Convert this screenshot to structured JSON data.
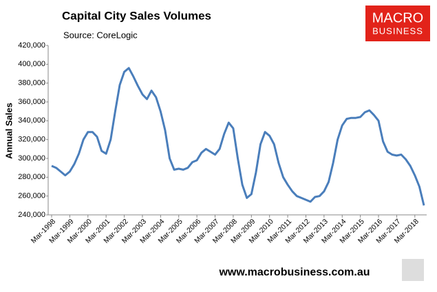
{
  "logo": {
    "line1": "MACRO",
    "line2": "BUSINESS"
  },
  "footer": "www.macrobusiness.com.au",
  "chart_data": {
    "type": "line",
    "title": "Capital City Sales Volumes",
    "subtitle": "Source: CoreLogic",
    "y_label": "Annual Sales",
    "categories": [
      "Mar-1998",
      null,
      null,
      null,
      "Mar-1999",
      null,
      null,
      null,
      "Mar-2000",
      null,
      null,
      null,
      "Mar-2001",
      null,
      null,
      null,
      "Mar-2002",
      null,
      null,
      null,
      "Mar-2003",
      null,
      null,
      null,
      "Mar-2004",
      null,
      null,
      null,
      "Mar-2005",
      null,
      null,
      null,
      "Mar-2006",
      null,
      null,
      null,
      "Mar-2007",
      null,
      null,
      null,
      "Mar-2008",
      null,
      null,
      null,
      "Mar-2009",
      null,
      null,
      null,
      "Mar-2010",
      null,
      null,
      null,
      "Mar-2011",
      null,
      null,
      null,
      "Mar-2012",
      null,
      null,
      null,
      "Mar-2013",
      null,
      null,
      null,
      "Mar-2014",
      null,
      null,
      null,
      "Mar-2015",
      null,
      null,
      null,
      "Mar-2016",
      null,
      null,
      null,
      "Mar-2017",
      null,
      null,
      null,
      "Mar-2018",
      null,
      null
    ],
    "series": [
      {
        "name": "Annual Sales",
        "color": "#4a7ebb",
        "values": [
          292000,
          290000,
          286000,
          282000,
          286000,
          294000,
          305000,
          320000,
          328000,
          328000,
          323000,
          308000,
          305000,
          320000,
          350000,
          378000,
          392000,
          396000,
          387000,
          377000,
          368000,
          363000,
          372000,
          365000,
          350000,
          330000,
          300000,
          288000,
          289000,
          288000,
          290000,
          296000,
          298000,
          306000,
          310000,
          307000,
          304000,
          310000,
          326000,
          338000,
          332000,
          300000,
          272000,
          258000,
          262000,
          285000,
          315000,
          328000,
          324000,
          315000,
          295000,
          280000,
          272000,
          265000,
          260000,
          258000,
          256000,
          254000,
          259000,
          260000,
          265000,
          275000,
          295000,
          320000,
          335000,
          342000,
          343000,
          343000,
          344000,
          349000,
          351000,
          346000,
          340000,
          318000,
          307000,
          304000,
          303000,
          304000,
          299000,
          292000,
          282000,
          270000,
          250000
        ]
      }
    ],
    "ylim": [
      240000,
      420000
    ],
    "yticks": [
      {
        "value": 240000,
        "label": "240,000"
      },
      {
        "value": 260000,
        "label": "260,000"
      },
      {
        "value": 280000,
        "label": "280,000"
      },
      {
        "value": 300000,
        "label": "300,000"
      },
      {
        "value": 320000,
        "label": "320,000"
      },
      {
        "value": 340000,
        "label": "340,000"
      },
      {
        "value": 360000,
        "label": "360,000"
      },
      {
        "value": 380000,
        "label": "380,000"
      },
      {
        "value": 400000,
        "label": "400,000"
      },
      {
        "value": 420000,
        "label": "420,000"
      }
    ],
    "grid": false
  }
}
